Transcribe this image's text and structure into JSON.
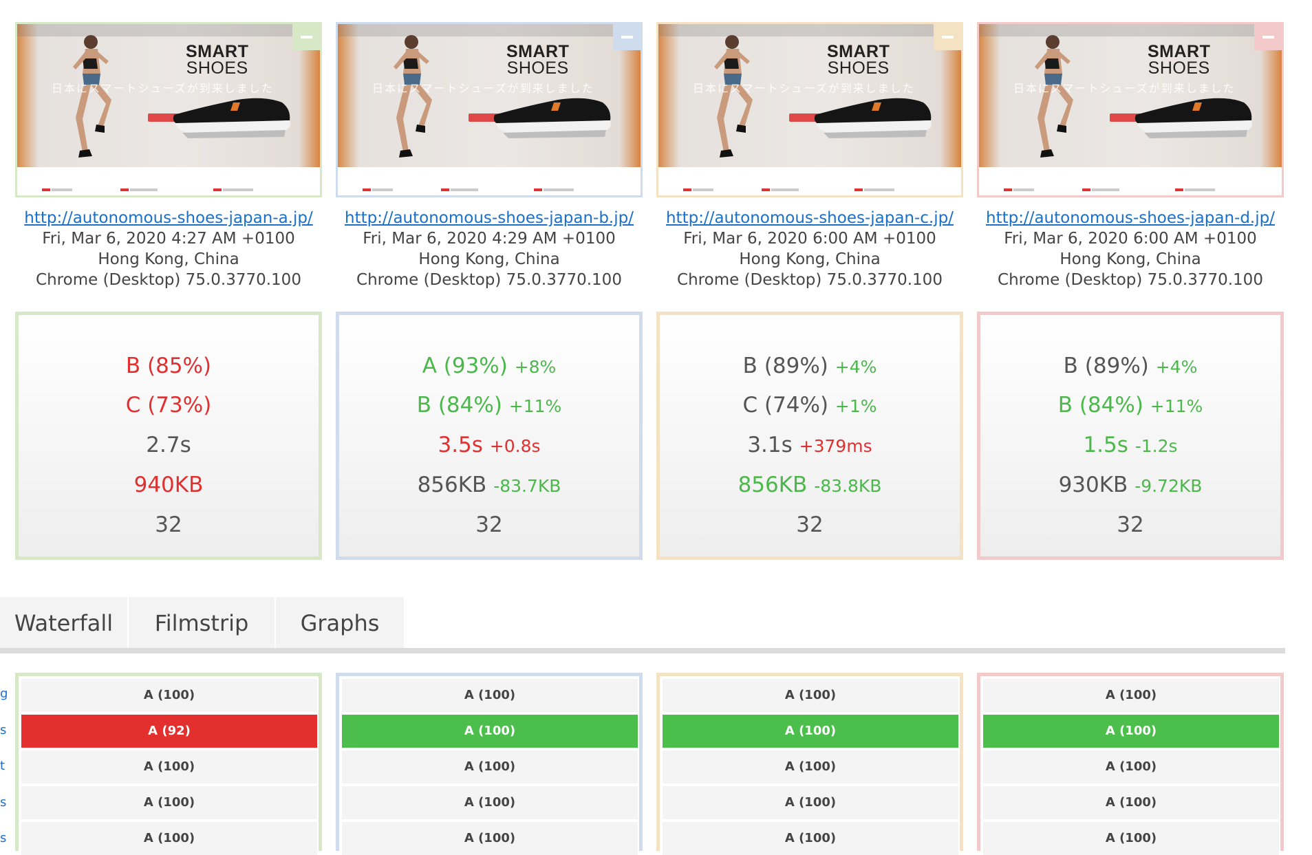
{
  "colors": {
    "green_border": "#d6e8c6",
    "blue_border": "#cfdcee",
    "yellow_border": "#f4e2c2",
    "pink_border": "#f3c9c9",
    "good": "#4cb84c",
    "bad": "#e03030",
    "neutral": "#555555"
  },
  "thumb_text": {
    "smart": "SMART",
    "shoes": "SHOES",
    "jp_line": "日本にスマートシューズが到来しました"
  },
  "tests": [
    {
      "url": "http://autonomous-shoes-japan-a.jp/",
      "date": "Fri, Mar 6, 2020 4:27 AM +0100",
      "location": "Hong Kong, China",
      "browser": "Chrome (Desktop) 75.0.3770.100",
      "metrics": [
        {
          "value": "B (85%)",
          "delta": "",
          "value_color": "red",
          "delta_color": ""
        },
        {
          "value": "C (73%)",
          "delta": "",
          "value_color": "red",
          "delta_color": ""
        },
        {
          "value": "2.7s",
          "delta": "",
          "value_color": "grey",
          "delta_color": ""
        },
        {
          "value": "940KB",
          "delta": "",
          "value_color": "red",
          "delta_color": ""
        },
        {
          "value": "32",
          "delta": "",
          "value_color": "grey",
          "delta_color": ""
        }
      ],
      "rows": [
        "A (100)",
        "A (92)",
        "A (100)",
        "A (100)",
        "A (100)"
      ]
    },
    {
      "url": "http://autonomous-shoes-japan-b.jp/",
      "date": "Fri, Mar 6, 2020 4:29 AM +0100",
      "location": "Hong Kong, China",
      "browser": "Chrome (Desktop) 75.0.3770.100",
      "metrics": [
        {
          "value": "A (93%)",
          "delta": "+8%",
          "value_color": "green",
          "delta_color": "green"
        },
        {
          "value": "B (84%)",
          "delta": "+11%",
          "value_color": "green",
          "delta_color": "green"
        },
        {
          "value": "3.5s",
          "delta": "+0.8s",
          "value_color": "red",
          "delta_color": "red"
        },
        {
          "value": "856KB",
          "delta": "-83.7KB",
          "value_color": "grey",
          "delta_color": "green"
        },
        {
          "value": "32",
          "delta": "",
          "value_color": "grey",
          "delta_color": ""
        }
      ],
      "rows": [
        "A (100)",
        "A (100)",
        "A (100)",
        "A (100)",
        "A (100)"
      ]
    },
    {
      "url": "http://autonomous-shoes-japan-c.jp/",
      "date": "Fri, Mar 6, 2020 6:00 AM +0100",
      "location": "Hong Kong, China",
      "browser": "Chrome (Desktop) 75.0.3770.100",
      "metrics": [
        {
          "value": "B (89%)",
          "delta": "+4%",
          "value_color": "grey",
          "delta_color": "green"
        },
        {
          "value": "C (74%)",
          "delta": "+1%",
          "value_color": "grey",
          "delta_color": "green"
        },
        {
          "value": "3.1s",
          "delta": "+379ms",
          "value_color": "grey",
          "delta_color": "red"
        },
        {
          "value": "856KB",
          "delta": "-83.8KB",
          "value_color": "green",
          "delta_color": "green"
        },
        {
          "value": "32",
          "delta": "",
          "value_color": "grey",
          "delta_color": ""
        }
      ],
      "rows": [
        "A (100)",
        "A (100)",
        "A (100)",
        "A (100)",
        "A (100)"
      ]
    },
    {
      "url": "http://autonomous-shoes-japan-d.jp/",
      "date": "Fri, Mar 6, 2020 6:00 AM +0100",
      "location": "Hong Kong, China",
      "browser": "Chrome (Desktop) 75.0.3770.100",
      "metrics": [
        {
          "value": "B (89%)",
          "delta": "+4%",
          "value_color": "grey",
          "delta_color": "green"
        },
        {
          "value": "B (84%)",
          "delta": "+11%",
          "value_color": "green",
          "delta_color": "green"
        },
        {
          "value": "1.5s",
          "delta": "-1.2s",
          "value_color": "green",
          "delta_color": "green"
        },
        {
          "value": "930KB",
          "delta": "-9.72KB",
          "value_color": "grey",
          "delta_color": "green"
        },
        {
          "value": "32",
          "delta": "",
          "value_color": "grey",
          "delta_color": ""
        }
      ],
      "rows": [
        "A (100)",
        "A (100)",
        "A (100)",
        "A (100)",
        "A (100)"
      ]
    }
  ],
  "tabs": [
    {
      "label": "Waterfall"
    },
    {
      "label": "Filmstrip"
    },
    {
      "label": "Graphs"
    }
  ],
  "row_edge_labels": [
    "g",
    "s",
    "t",
    "s",
    "s"
  ]
}
